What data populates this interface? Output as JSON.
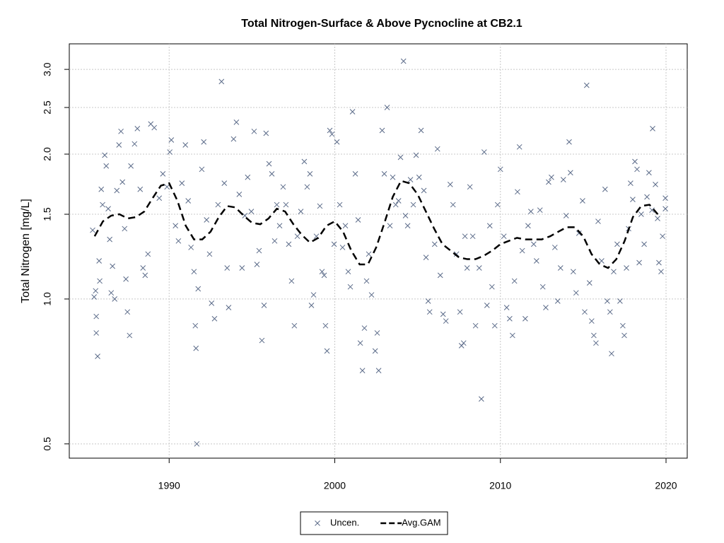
{
  "chart_data": {
    "type": "scatter",
    "title": "Total Nitrogen-Surface & Above Pycnocline at CB2.1",
    "y_label": "Total Nitrogen [mg/L]",
    "log_y": true,
    "grid": true,
    "legend": "bottom",
    "xlim": [
      1983.97,
      2021.28
    ],
    "xticks": [
      1990,
      2000,
      2010,
      2020
    ],
    "ylim": [
      0.467,
      3.39
    ],
    "yticks": [
      0.5,
      {
        "value": 1.0,
        "label": "1.0"
      },
      1.5,
      {
        "value": 2.0,
        "label": "2.0"
      },
      2.5,
      {
        "value": 3.0,
        "label": "3.0"
      }
    ],
    "series": [
      {
        "name": "Uncen.",
        "color": "#5a6a88",
        "marker": "x",
        "x": [
          1985.38,
          1985.47,
          1985.56,
          1985.6,
          1985.6,
          1985.68,
          1985.77,
          1985.81,
          1985.9,
          1985.98,
          1986.11,
          1986.2,
          1986.32,
          1986.41,
          1986.5,
          1986.58,
          1986.71,
          1986.84,
          1986.97,
          1987.09,
          1987.18,
          1987.31,
          1987.39,
          1987.48,
          1987.61,
          1987.69,
          1987.91,
          1988.08,
          1988.25,
          1988.42,
          1988.55,
          1988.72,
          1988.89,
          1989.1,
          1989.4,
          1989.62,
          1989.87,
          1990.04,
          1990.13,
          1990.38,
          1990.56,
          1990.77,
          1990.98,
          1991.15,
          1991.32,
          1991.5,
          1991.58,
          1991.62,
          1991.67,
          1991.75,
          1991.97,
          1992.09,
          1992.26,
          1992.44,
          1992.56,
          1992.74,
          1992.95,
          1993.16,
          1993.33,
          1993.5,
          1993.59,
          1993.89,
          1994.06,
          1994.23,
          1994.4,
          1994.57,
          1994.74,
          1994.96,
          1995.13,
          1995.3,
          1995.43,
          1995.6,
          1995.73,
          1995.85,
          1996.03,
          1996.2,
          1996.37,
          1996.5,
          1996.67,
          1996.88,
          1997.05,
          1997.22,
          1997.39,
          1997.56,
          1997.74,
          1997.95,
          1998.16,
          1998.33,
          1998.5,
          1998.59,
          1998.72,
          1998.89,
          1999.1,
          1999.23,
          1999.36,
          1999.44,
          1999.53,
          1999.7,
          1999.83,
          1999.96,
          2000.13,
          2000.3,
          2000.47,
          2000.64,
          2000.81,
          2000.94,
          2001.07,
          2001.24,
          2001.41,
          2001.54,
          2001.67,
          2001.79,
          2001.92,
          2002.05,
          2002.22,
          2002.44,
          2002.56,
          2002.65,
          2002.86,
          2002.99,
          2003.16,
          2003.33,
          2003.5,
          2003.68,
          2003.85,
          2003.97,
          2004.15,
          2004.27,
          2004.4,
          2004.57,
          2004.74,
          2004.91,
          2005.09,
          2005.21,
          2005.38,
          2005.51,
          2005.64,
          2005.73,
          2006.03,
          2006.2,
          2006.37,
          2006.54,
          2006.71,
          2006.97,
          2007.14,
          2007.35,
          2007.56,
          2007.65,
          2007.78,
          2007.86,
          2007.99,
          2008.16,
          2008.33,
          2008.5,
          2008.72,
          2008.85,
          2009.02,
          2009.19,
          2009.36,
          2009.49,
          2009.66,
          2009.83,
          2010.0,
          2010.21,
          2010.38,
          2010.56,
          2010.73,
          2010.85,
          2011.03,
          2011.15,
          2011.32,
          2011.5,
          2011.67,
          2011.84,
          2012.01,
          2012.18,
          2012.39,
          2012.56,
          2012.74,
          2012.91,
          2013.08,
          2013.29,
          2013.46,
          2013.63,
          2013.8,
          2013.97,
          2014.15,
          2014.23,
          2014.4,
          2014.57,
          2014.74,
          2014.96,
          2015.09,
          2015.21,
          2015.38,
          2015.51,
          2015.64,
          2015.77,
          2015.9,
          2016.11,
          2016.32,
          2016.45,
          2016.62,
          2016.71,
          2016.84,
          2017.05,
          2017.22,
          2017.39,
          2017.48,
          2017.61,
          2017.74,
          2017.86,
          2017.99,
          2018.12,
          2018.25,
          2018.38,
          2018.5,
          2018.68,
          2018.85,
          2018.97,
          2019.15,
          2019.19,
          2019.36,
          2019.49,
          2019.57,
          2019.7,
          2019.79,
          2019.96,
          2019.96
        ],
        "values": [
          1.39,
          1.01,
          1.04,
          0.92,
          0.85,
          0.76,
          1.2,
          1.09,
          1.69,
          1.57,
          1.99,
          1.89,
          1.54,
          1.33,
          1.03,
          1.17,
          1.0,
          1.68,
          2.09,
          2.23,
          1.75,
          1.4,
          1.1,
          0.94,
          0.84,
          1.89,
          2.1,
          2.26,
          1.69,
          1.16,
          1.12,
          1.24,
          2.31,
          2.27,
          1.62,
          1.82,
          1.71,
          2.02,
          2.14,
          1.42,
          1.32,
          1.74,
          2.09,
          1.6,
          1.28,
          1.14,
          0.88,
          0.79,
          0.5,
          1.05,
          1.86,
          2.12,
          1.46,
          1.24,
          0.98,
          0.91,
          1.57,
          2.83,
          1.74,
          1.16,
          0.96,
          2.15,
          2.33,
          1.65,
          1.16,
          1.49,
          1.79,
          1.52,
          2.23,
          1.18,
          1.26,
          0.82,
          0.97,
          2.21,
          1.91,
          1.82,
          1.32,
          1.57,
          1.42,
          1.71,
          1.57,
          1.3,
          1.09,
          0.88,
          1.35,
          1.52,
          1.93,
          1.71,
          1.82,
          0.97,
          1.02,
          1.35,
          1.56,
          1.14,
          1.12,
          0.88,
          0.78,
          2.24,
          2.2,
          1.3,
          2.12,
          1.57,
          1.28,
          1.42,
          1.14,
          1.06,
          2.45,
          1.82,
          1.46,
          0.81,
          0.71,
          0.87,
          1.09,
          1.24,
          1.02,
          0.78,
          0.85,
          0.71,
          2.24,
          1.82,
          2.5,
          1.42,
          1.79,
          1.57,
          1.6,
          1.97,
          3.12,
          1.49,
          1.42,
          1.77,
          1.57,
          1.99,
          1.79,
          2.24,
          1.68,
          1.22,
          0.99,
          0.94,
          1.3,
          2.05,
          1.12,
          0.93,
          0.9,
          1.73,
          1.57,
          1.24,
          0.94,
          0.8,
          0.81,
          1.35,
          1.16,
          1.71,
          1.35,
          0.88,
          1.16,
          0.62,
          2.02,
          0.97,
          1.42,
          1.06,
          0.88,
          1.57,
          1.86,
          1.35,
          0.96,
          0.91,
          0.84,
          1.09,
          1.67,
          2.07,
          1.26,
          0.91,
          1.42,
          1.52,
          1.3,
          1.2,
          1.53,
          1.06,
          0.96,
          1.75,
          1.79,
          1.28,
          0.99,
          1.16,
          1.77,
          1.49,
          2.12,
          1.83,
          1.14,
          1.03,
          1.37,
          1.6,
          0.94,
          2.78,
          1.08,
          0.9,
          0.84,
          0.81,
          1.45,
          1.2,
          1.69,
          0.99,
          0.94,
          0.77,
          1.14,
          1.3,
          0.99,
          0.88,
          0.84,
          1.16,
          1.4,
          1.74,
          1.61,
          1.93,
          1.86,
          1.19,
          1.5,
          1.3,
          1.63,
          1.83,
          1.53,
          2.26,
          1.73,
          1.47,
          1.19,
          1.14,
          1.35,
          1.54,
          1.62
        ]
      },
      {
        "name": "Avg.GAM",
        "color": "#000000",
        "dashed": true,
        "x": [
          1985.5,
          1986,
          1986.5,
          1987,
          1987.5,
          1988,
          1988.5,
          1989,
          1989.5,
          1990,
          1990.5,
          1991,
          1991.5,
          1992,
          1992.5,
          1993,
          1993.5,
          1994,
          1994.5,
          1995,
          1995.5,
          1996,
          1996.5,
          1997,
          1997.5,
          1998,
          1998.5,
          1999,
          1999.5,
          2000,
          2000.5,
          2001,
          2001.5,
          2002,
          2002.5,
          2003,
          2003.5,
          2004,
          2004.5,
          2005,
          2005.5,
          2006,
          2006.5,
          2007,
          2007.5,
          2008,
          2008.5,
          2009,
          2009.5,
          2010,
          2010.5,
          2011,
          2011.5,
          2012,
          2012.5,
          2013,
          2013.5,
          2014,
          2014.5,
          2015,
          2015.5,
          2016,
          2016.5,
          2017,
          2017.5,
          2018,
          2018.5,
          2019,
          2019.5
        ],
        "values": [
          1.35,
          1.45,
          1.49,
          1.5,
          1.47,
          1.48,
          1.52,
          1.62,
          1.72,
          1.74,
          1.6,
          1.42,
          1.33,
          1.33,
          1.38,
          1.48,
          1.56,
          1.55,
          1.49,
          1.44,
          1.43,
          1.47,
          1.54,
          1.52,
          1.43,
          1.36,
          1.31,
          1.34,
          1.42,
          1.45,
          1.38,
          1.26,
          1.18,
          1.18,
          1.28,
          1.44,
          1.63,
          1.76,
          1.74,
          1.65,
          1.52,
          1.4,
          1.3,
          1.26,
          1.22,
          1.21,
          1.21,
          1.23,
          1.26,
          1.3,
          1.32,
          1.34,
          1.33,
          1.33,
          1.33,
          1.35,
          1.38,
          1.41,
          1.41,
          1.35,
          1.24,
          1.18,
          1.16,
          1.21,
          1.32,
          1.48,
          1.56,
          1.57,
          1.5
        ]
      }
    ]
  }
}
